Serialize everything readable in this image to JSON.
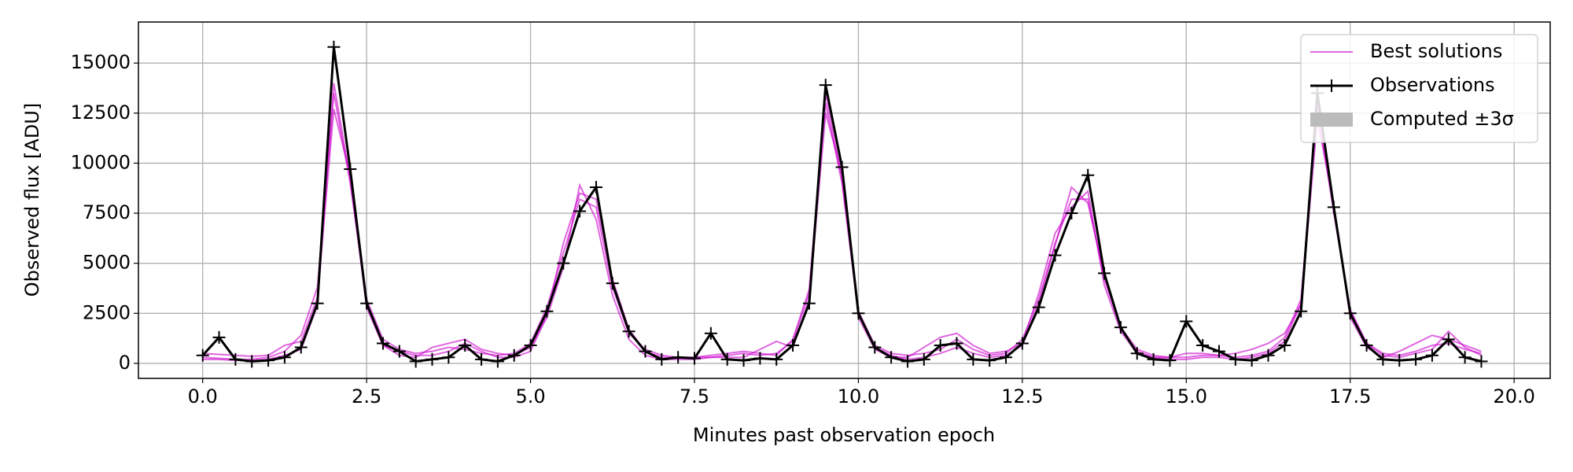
{
  "chart_data": {
    "type": "line",
    "xlabel": "Minutes past observation epoch",
    "ylabel": "Observed flux [ADU]",
    "xlim": [
      -0.98,
      20.55
    ],
    "ylim": [
      -750,
      17050
    ],
    "xticks": [
      {
        "value": 0,
        "label": "0.0"
      },
      {
        "value": 2.5,
        "label": "2.5"
      },
      {
        "value": 5,
        "label": "5.0"
      },
      {
        "value": 7.5,
        "label": "7.5"
      },
      {
        "value": 10,
        "label": "10.0"
      },
      {
        "value": 12.5,
        "label": "12.5"
      },
      {
        "value": 15,
        "label": "15.0"
      },
      {
        "value": 17.5,
        "label": "17.5"
      },
      {
        "value": 20,
        "label": "20.0"
      }
    ],
    "yticks": [
      0,
      2500,
      5000,
      7500,
      10000,
      12500,
      15000
    ],
    "grid": true,
    "legend": "upper right",
    "x": [
      0,
      0.25,
      0.5,
      0.75,
      1,
      1.25,
      1.5,
      1.75,
      2,
      2.25,
      2.5,
      2.75,
      3,
      3.25,
      3.5,
      3.75,
      4,
      4.25,
      4.5,
      4.75,
      5,
      5.25,
      5.5,
      5.75,
      6,
      6.25,
      6.5,
      6.75,
      7,
      7.25,
      7.5,
      7.75,
      8,
      8.25,
      8.5,
      8.75,
      9,
      9.25,
      9.5,
      9.75,
      10,
      10.25,
      10.5,
      10.75,
      11,
      11.25,
      11.5,
      11.75,
      12,
      12.25,
      12.5,
      12.75,
      13,
      13.25,
      13.5,
      13.75,
      14,
      14.25,
      14.5,
      14.75,
      15,
      15.25,
      15.5,
      15.75,
      16,
      16.25,
      16.5,
      16.75,
      17,
      17.25,
      17.5,
      17.75,
      18,
      18.25,
      18.5,
      18.75,
      19,
      19.25,
      19.5
    ],
    "series": [
      {
        "name": "Best solutions",
        "color": "#cc00cc",
        "lines": [
          [
            300,
            250,
            200,
            200,
            300,
            600,
            1400,
            3800,
            13500,
            9000,
            3200,
            1200,
            700,
            500,
            600,
            800,
            700,
            500,
            400,
            500,
            1000,
            2800,
            5500,
            8200,
            7800,
            3800,
            1500,
            700,
            400,
            300,
            300,
            300,
            400,
            500,
            400,
            500,
            1100,
            3500,
            13000,
            9000,
            2600,
            900,
            500,
            400,
            500,
            700,
            1200,
            700,
            400,
            500,
            1200,
            3200,
            6000,
            8200,
            8200,
            4200,
            1800,
            700,
            400,
            300,
            300,
            400,
            400,
            300,
            400,
            600,
            1300,
            3200,
            12800,
            7500,
            2700,
            1000,
            500,
            400,
            600,
            900,
            1000,
            700,
            500
          ],
          [
            500,
            450,
            400,
            350,
            400,
            900,
            1100,
            3300,
            12700,
            9400,
            2800,
            900,
            400,
            300,
            800,
            1000,
            1200,
            700,
            500,
            400,
            800,
            2300,
            4800,
            8900,
            7200,
            3400,
            1200,
            400,
            200,
            200,
            200,
            300,
            300,
            300,
            700,
            1100,
            800,
            3200,
            12500,
            9500,
            2300,
            700,
            300,
            300,
            800,
            1300,
            1500,
            900,
            500,
            600,
            1000,
            3500,
            6500,
            7800,
            8600,
            3900,
            1600,
            500,
            300,
            300,
            500,
            500,
            400,
            500,
            700,
            1000,
            1500,
            2900,
            12200,
            7900,
            2300,
            800,
            300,
            600,
            1000,
            1400,
            1200,
            900,
            600
          ],
          [
            200,
            200,
            150,
            150,
            200,
            400,
            700,
            2900,
            14000,
            9200,
            2900,
            900,
            600,
            400,
            400,
            600,
            1000,
            600,
            300,
            300,
            600,
            2400,
            6000,
            8500,
            8200,
            4200,
            1700,
            600,
            300,
            250,
            300,
            400,
            500,
            600,
            500,
            400,
            1200,
            3700,
            13500,
            9200,
            2500,
            800,
            400,
            200,
            300,
            500,
            800,
            500,
            300,
            400,
            900,
            3000,
            5900,
            8800,
            8000,
            4400,
            1700,
            600,
            300,
            200,
            200,
            300,
            300,
            200,
            300,
            500,
            1100,
            3000,
            13200,
            7700,
            2600,
            1000,
            400,
            300,
            500,
            700,
            1600,
            800,
            400
          ]
        ]
      },
      {
        "name": "Observations",
        "color": "#000000",
        "marker": "+",
        "values": [
          400,
          1300,
          200,
          100,
          150,
          300,
          800,
          3000,
          15800,
          9700,
          3000,
          1000,
          600,
          100,
          200,
          300,
          900,
          200,
          100,
          400,
          900,
          2600,
          5000,
          7600,
          8800,
          4000,
          1600,
          600,
          200,
          300,
          250,
          1500,
          200,
          150,
          250,
          200,
          900,
          3000,
          13900,
          9800,
          2500,
          800,
          300,
          100,
          200,
          900,
          1000,
          200,
          150,
          300,
          1000,
          2800,
          5400,
          7500,
          9400,
          4500,
          1800,
          500,
          200,
          150,
          2100,
          900,
          600,
          200,
          150,
          400,
          900,
          2600,
          13500,
          7800,
          2500,
          900,
          200,
          150,
          200,
          400,
          1200,
          300,
          100
        ]
      },
      {
        "name": "Computed ±3σ",
        "color": "#bbbbbb"
      }
    ]
  }
}
